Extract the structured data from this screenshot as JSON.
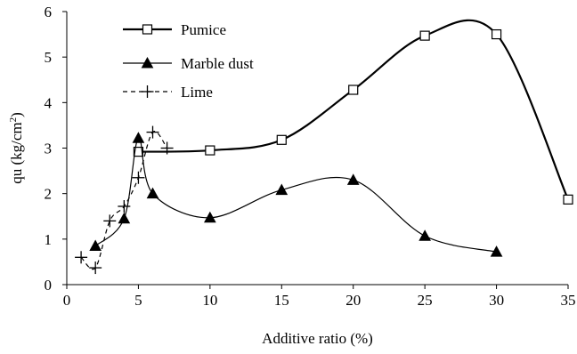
{
  "chart_data": {
    "type": "line",
    "title": "",
    "xlabel": "Additive ratio (%)",
    "ylabel_main": "qu (kg/cm",
    "ylabel_sup": "2",
    "ylabel_close": ")",
    "xlim": [
      0,
      35
    ],
    "ylim": [
      0,
      6
    ],
    "x_ticks": [
      0,
      5,
      10,
      15,
      20,
      25,
      30,
      35
    ],
    "y_ticks": [
      0,
      1,
      2,
      3,
      4,
      5,
      6
    ],
    "grid": false,
    "legend_position": "top-left",
    "series": [
      {
        "name": "Pumice",
        "marker": "open-square",
        "line_style": "solid-bold",
        "x": [
          5,
          10,
          15,
          20,
          25,
          30,
          35
        ],
        "y": [
          2.92,
          2.95,
          3.18,
          4.28,
          5.47,
          5.5,
          1.87
        ]
      },
      {
        "name": "Marble dust",
        "marker": "filled-triangle",
        "line_style": "solid",
        "x": [
          2,
          4,
          5,
          6,
          10,
          15,
          20,
          25,
          30
        ],
        "y": [
          0.85,
          1.45,
          3.22,
          2.0,
          1.47,
          2.08,
          2.3,
          1.07,
          0.72
        ]
      },
      {
        "name": "Lime",
        "marker": "plus",
        "line_style": "dashed",
        "x": [
          1,
          2,
          3,
          4,
          5,
          6,
          7
        ],
        "y": [
          0.6,
          0.37,
          1.4,
          1.72,
          2.35,
          3.35,
          3.0
        ]
      }
    ]
  }
}
